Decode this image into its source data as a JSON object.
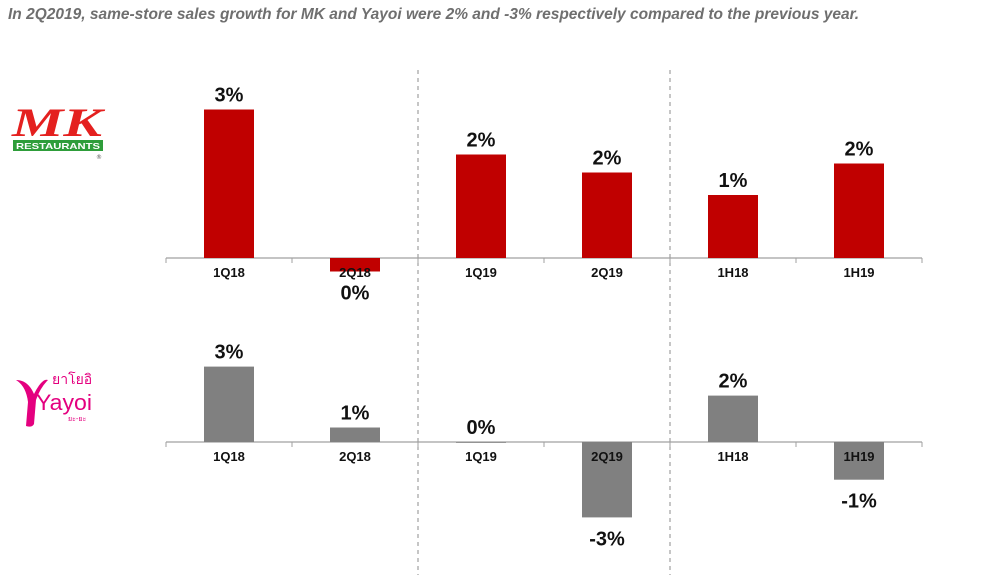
{
  "headline": "In 2Q2019, same-store sales growth for MK and Yayoi were 2% and -3% respectively compared to the previous year.",
  "logos": {
    "mk": {
      "name": "MK",
      "subtitle": "RESTAURANTS",
      "mark": "®"
    },
    "yayoi": {
      "thai": "ยาโยอิ",
      "name": "Yayoi",
      "small": "ยะ-ยะ"
    }
  },
  "colors": {
    "mk_bar": "#c00000",
    "yayoi_bar": "#808080",
    "mk_logo_red": "#e4201f",
    "mk_logo_green": "#2e9d3a",
    "yayoi_logo": "#e4007f",
    "headline": "#6f6f6f"
  },
  "chart_data": [
    {
      "type": "bar",
      "brand": "MK",
      "categories": [
        "1Q18",
        "2Q18",
        "1Q19",
        "2Q19",
        "1H18",
        "1H19"
      ],
      "values": [
        3.3,
        -0.3,
        2.3,
        1.9,
        1.4,
        2.1
      ],
      "labels": [
        "3%",
        "0%",
        "2%",
        "2%",
        "1%",
        "2%"
      ],
      "ylim": [
        -1,
        4
      ],
      "grid": false
    },
    {
      "type": "bar",
      "brand": "Yayoi",
      "categories": [
        "1Q18",
        "2Q18",
        "1Q19",
        "2Q19",
        "1H18",
        "1H19"
      ],
      "values": [
        2.6,
        0.5,
        0.0,
        -2.6,
        1.6,
        -1.3
      ],
      "labels": [
        "3%",
        "1%",
        "0%",
        "-3%",
        "2%",
        "-1%"
      ],
      "ylim": [
        -3,
        3
      ],
      "grid": false
    }
  ]
}
